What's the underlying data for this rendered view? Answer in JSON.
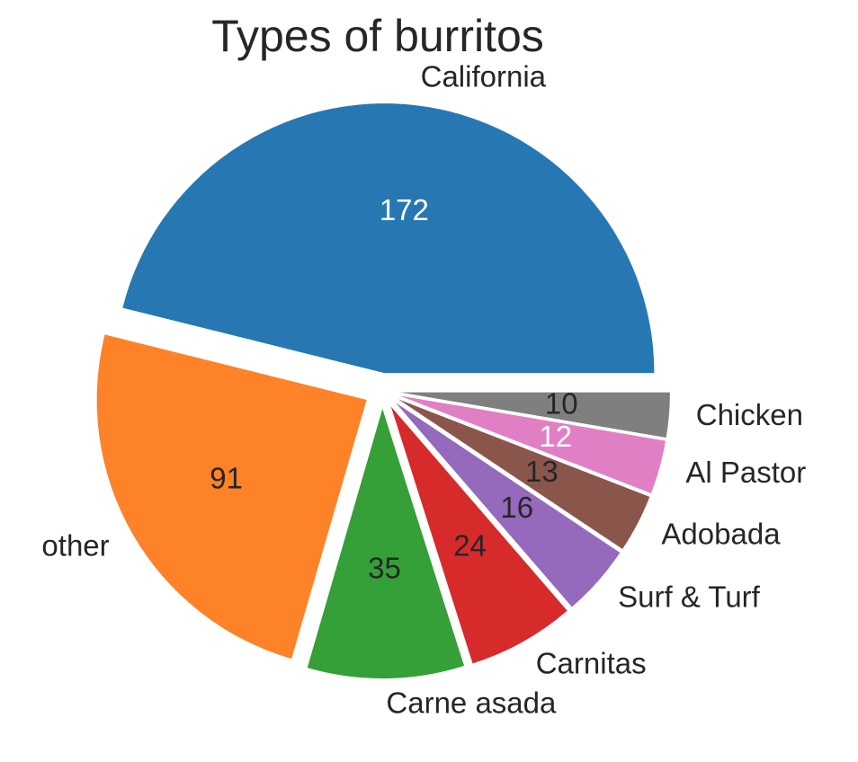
{
  "chart_data": {
    "type": "pie",
    "title": "Types of burritos",
    "categories": [
      "California",
      "other",
      "Carne asada",
      "Carnitas",
      "Surf & Turf",
      "Adobada",
      "Al Pastor",
      "Chicken"
    ],
    "values": [
      172,
      91,
      35,
      24,
      16,
      13,
      12,
      10
    ],
    "colors": [
      "#2778b2",
      "#fd8228",
      "#35a038",
      "#d62a2b",
      "#9569bb",
      "#8a564b",
      "#e17fc4",
      "#7f7f7f"
    ],
    "value_label_colors": [
      "#ffffff",
      "#262626",
      "#262626",
      "#262626",
      "#262626",
      "#262626",
      "#ffffff",
      "#262626"
    ]
  }
}
